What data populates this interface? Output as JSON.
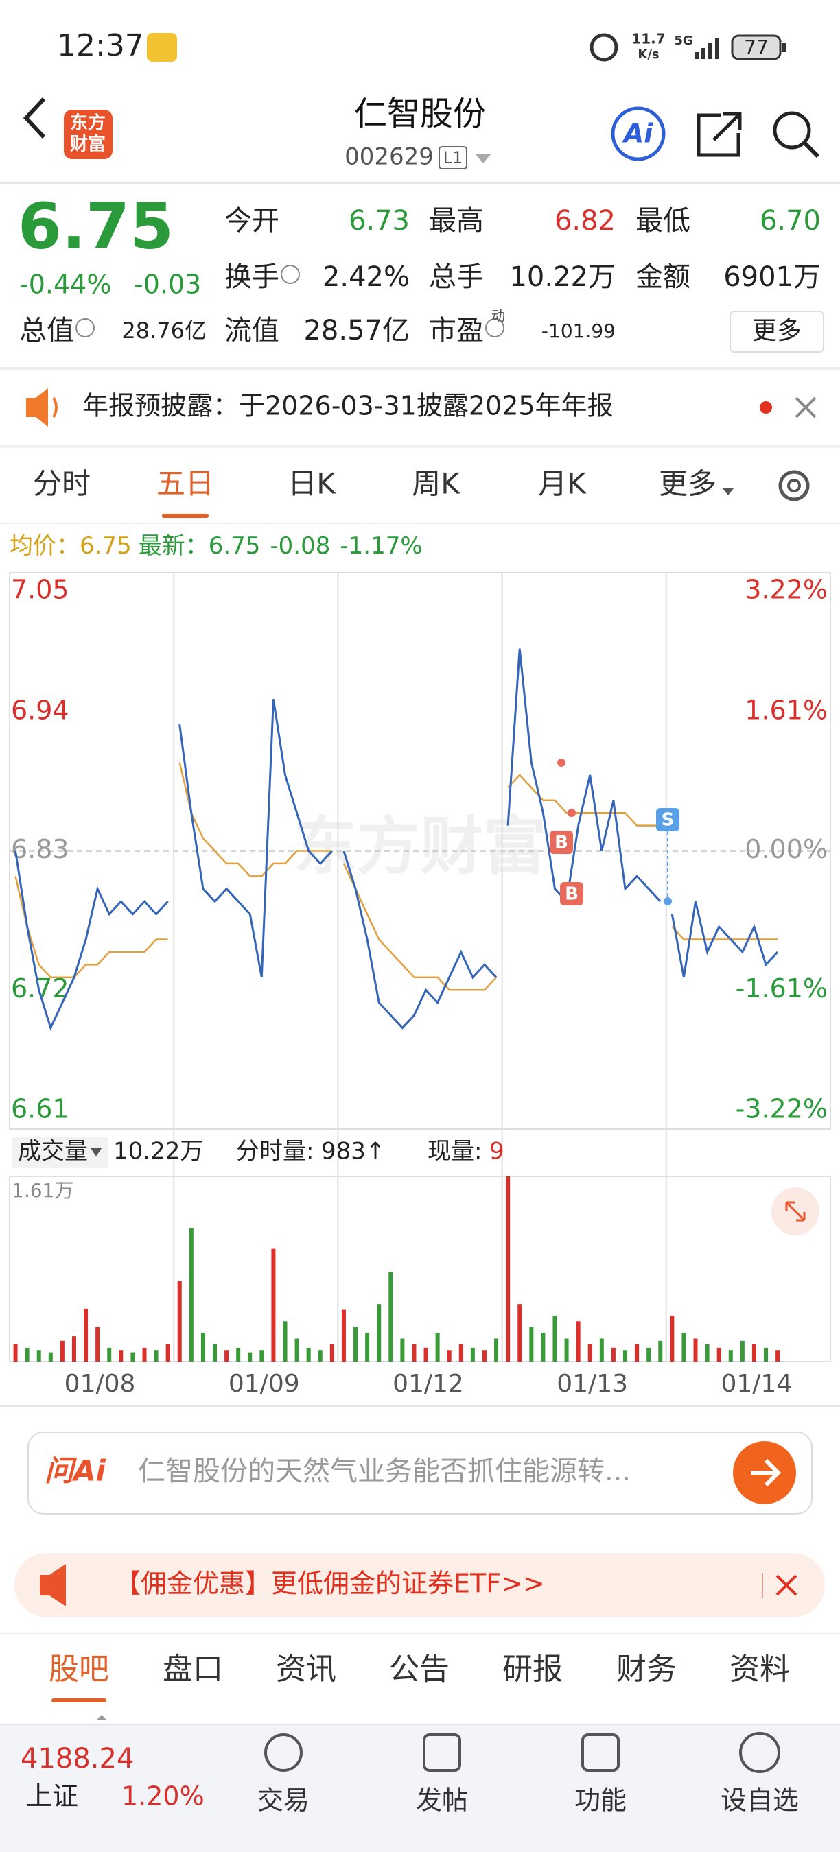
{
  "status": {
    "time": "12:37",
    "speed": [
      "11.7",
      "K/s"
    ],
    "network": "5G",
    "battery": "77"
  },
  "header": {
    "logo": [
      "东方",
      "财富"
    ],
    "title": "仁智股份",
    "code": "002629",
    "level": "L1",
    "ai": "Ai"
  },
  "quote": {
    "price": "6.75",
    "change_pct": "-0.44%",
    "change": "-0.03",
    "rows": [
      [
        [
          "今开",
          "6.73"
        ],
        [
          "最高",
          "6.82"
        ],
        [
          "最低",
          "6.70"
        ]
      ],
      [
        [
          "换手",
          "2.42%"
        ],
        [
          "总手",
          "10.22万"
        ],
        [
          "金额",
          "6901万"
        ]
      ],
      [
        [
          "总值",
          "28.76亿"
        ],
        [
          "流值",
          "28.57亿"
        ],
        [
          "市盈",
          "-101.99"
        ]
      ]
    ],
    "pe_tag": "动",
    "more": "更多"
  },
  "notice": "年报预披露：于2026-03-31披露2025年年报",
  "tabs": [
    "分时",
    "五日",
    "日K",
    "周K",
    "月K",
    "更多"
  ],
  "summary": {
    "avg_label": "均价：",
    "avg": "6.75",
    "last_label": "最新：",
    "last": "6.75",
    "change": "-0.08",
    "change_pct": "-1.17%"
  },
  "watermark": "东方财富",
  "trade_marks": [
    "B",
    "B",
    "S"
  ],
  "price_chart": {
    "type": "line",
    "ylim": [
      6.61,
      7.05
    ],
    "yticks": [
      7.05,
      6.94,
      6.83,
      6.72,
      6.61
    ],
    "pct_ticks": [
      "3.22%",
      "1.61%",
      "0.00%",
      "-1.61%",
      "-3.22%"
    ],
    "dates": [
      "01/08",
      "01/09",
      "01/12",
      "01/13",
      "01/14"
    ],
    "price_color": "#3565b8",
    "avg_color": "#e0a040",
    "price": [
      [
        6.83,
        6.77,
        6.72,
        6.69,
        6.71,
        6.73,
        6.76,
        6.8,
        6.78,
        6.79,
        6.78,
        6.79,
        6.78,
        6.79
      ],
      [
        6.93,
        6.86,
        6.8,
        6.79,
        6.8,
        6.79,
        6.78,
        6.73,
        6.95,
        6.89,
        6.86,
        6.83,
        6.82,
        6.83
      ],
      [
        6.83,
        6.8,
        6.76,
        6.71,
        6.7,
        6.69,
        6.7,
        6.72,
        6.71,
        6.73,
        6.75,
        6.73,
        6.74,
        6.73
      ],
      [
        6.85,
        6.99,
        6.9,
        6.86,
        6.8,
        6.79,
        6.85,
        6.89,
        6.83,
        6.87,
        6.8,
        6.81,
        6.8,
        6.79
      ],
      [
        6.78,
        6.73,
        6.79,
        6.75,
        6.77,
        6.76,
        6.75,
        6.77,
        6.74,
        6.75
      ]
    ],
    "avg": [
      [
        6.81,
        6.77,
        6.74,
        6.73,
        6.73,
        6.73,
        6.74,
        6.74,
        6.75,
        6.75,
        6.75,
        6.75,
        6.76,
        6.76
      ],
      [
        6.9,
        6.86,
        6.84,
        6.83,
        6.82,
        6.82,
        6.81,
        6.81,
        6.82,
        6.82,
        6.83,
        6.83,
        6.83,
        6.83
      ],
      [
        6.82,
        6.8,
        6.78,
        6.76,
        6.75,
        6.74,
        6.73,
        6.73,
        6.73,
        6.72,
        6.72,
        6.72,
        6.72,
        6.73
      ],
      [
        6.88,
        6.89,
        6.88,
        6.87,
        6.87,
        6.86,
        6.86,
        6.86,
        6.86,
        6.86,
        6.86,
        6.85,
        6.85,
        6.85
      ],
      [
        6.77,
        6.76,
        6.76,
        6.76,
        6.76,
        6.76,
        6.76,
        6.76,
        6.76,
        6.76
      ]
    ]
  },
  "volume_chart": {
    "type": "bar",
    "title": "成交量",
    "total": "10.22万",
    "tick_label": "分时量:",
    "tick_volume": "983↑",
    "now_label": "现量:",
    "now": "9",
    "ylim": [
      0,
      1.61
    ],
    "yticks": [
      {
        "value": 1.61,
        "label": "1.61万"
      }
    ],
    "up_color": "#d9302b",
    "down_color": "#3a9a3a",
    "values": [
      [
        0.15,
        0.12,
        0.1,
        0.08,
        0.18,
        0.22,
        0.46,
        0.3,
        0.12,
        0.1,
        0.08,
        0.12,
        0.1,
        0.15
      ],
      [
        0.7,
        1.16,
        0.25,
        0.15,
        0.1,
        0.12,
        0.08,
        0.1,
        0.98,
        0.35,
        0.2,
        0.12,
        0.1,
        0.15
      ],
      [
        0.45,
        0.3,
        0.25,
        0.5,
        0.78,
        0.2,
        0.15,
        0.12,
        0.25,
        0.1,
        0.15,
        0.12,
        0.1,
        0.2
      ],
      [
        1.61,
        0.5,
        0.3,
        0.25,
        0.4,
        0.2,
        0.35,
        0.15,
        0.2,
        0.12,
        0.1,
        0.15,
        0.12,
        0.18
      ],
      [
        0.4,
        0.25,
        0.2,
        0.15,
        0.12,
        0.1,
        0.18,
        0.15,
        0.12,
        0.1
      ]
    ]
  },
  "ask_ai": {
    "brand": "问Ai",
    "prompt": "仁智股份的天然气业务能否抓住能源转..."
  },
  "promo": "【佣金优惠】更低佣金的证券ETF>>",
  "bottom_tabs": [
    "股吧",
    "盘口",
    "资讯",
    "公告",
    "研报",
    "财务",
    "资料"
  ],
  "nav": {
    "index_value": "4188.24",
    "index_name": "上证",
    "index_change": "1.20%",
    "items": [
      "交易",
      "发帖",
      "功能",
      "设自选"
    ]
  }
}
